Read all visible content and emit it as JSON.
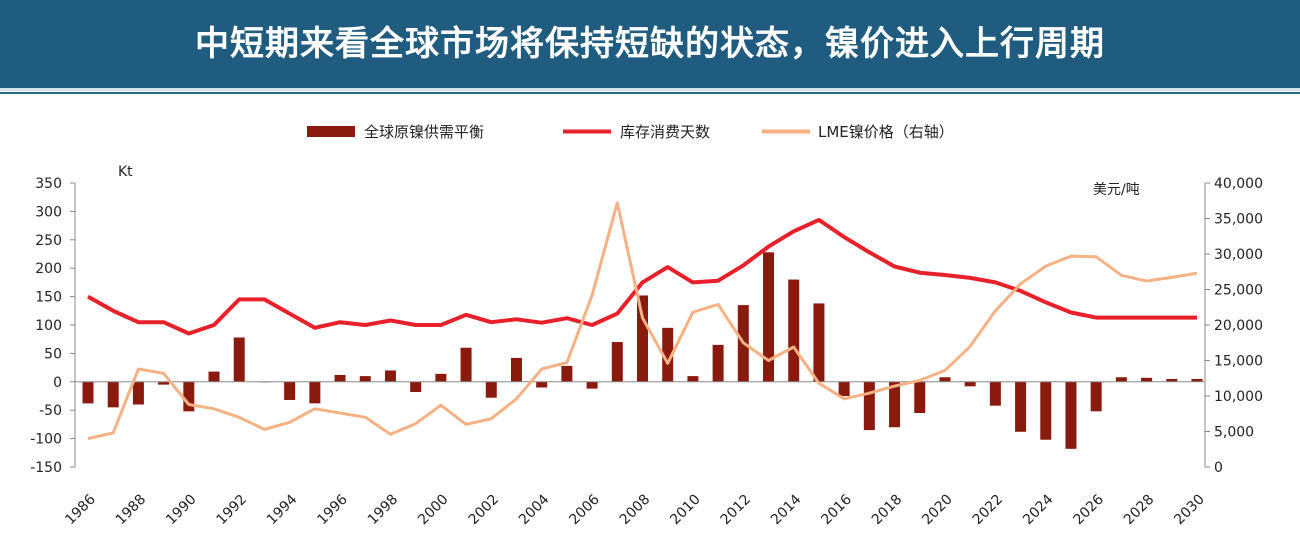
{
  "header": {
    "title": "中短期来看全球市场将保持短缺的状态，镍价进入上行周期"
  },
  "colors": {
    "header_bg": "#1f5c7f",
    "bar": "#8b1a0e",
    "inventory_line": "#e8202a",
    "price_line": "#f4b183"
  },
  "chart_data": {
    "type": "bar+line",
    "title": "",
    "years": [
      1986,
      1987,
      1988,
      1989,
      1990,
      1991,
      1992,
      1993,
      1994,
      1995,
      1996,
      1997,
      1998,
      1999,
      2000,
      2001,
      2002,
      2003,
      2004,
      2005,
      2006,
      2007,
      2008,
      2009,
      2010,
      2011,
      2012,
      2013,
      2014,
      2015,
      2016,
      2017,
      2018,
      2019,
      2020,
      2021,
      2022,
      2023,
      2024,
      2025,
      2026,
      2027,
      2028,
      2029,
      2030
    ],
    "x_tick_labels": [
      "1986",
      "1988",
      "1990",
      "1992",
      "1994",
      "1996",
      "1998",
      "2000",
      "2002",
      "2004",
      "2006",
      "2008",
      "2010",
      "2012",
      "2014",
      "2016",
      "2018",
      "2020",
      "2022",
      "2024",
      "2026",
      "2028",
      "2030"
    ],
    "left_axis": {
      "unit": "Kt",
      "min": -150,
      "max": 350,
      "step": 50,
      "tick_labels": [
        "350",
        "300",
        "250",
        "200",
        "150",
        "100",
        "50",
        "0",
        "-50",
        "-100",
        "-150"
      ]
    },
    "right_axis": {
      "unit": "美元/吨",
      "min": 0,
      "max": 40000,
      "step": 5000,
      "tick_labels": [
        "40,000",
        "35,000",
        "30,000",
        "25,000",
        "20,000",
        "15,000",
        "10,000",
        "5,000",
        "0"
      ]
    },
    "legend_position": "top-center",
    "series": [
      {
        "name": "全球原镍供需平衡",
        "kind": "bar",
        "axis": "left",
        "values": [
          -38,
          -45,
          -40,
          -5,
          -52,
          18,
          78,
          0,
          -32,
          -38,
          12,
          10,
          20,
          -18,
          14,
          60,
          -28,
          42,
          -10,
          28,
          -12,
          70,
          152,
          95,
          10,
          65,
          135,
          228,
          180,
          138,
          -25,
          -85,
          -80,
          -55,
          8,
          -8,
          -42,
          -88,
          -102,
          -118,
          -52,
          8,
          7,
          5,
          5
        ]
      },
      {
        "name": "库存消费天数",
        "kind": "line",
        "axis": "left",
        "values": [
          150,
          125,
          105,
          105,
          85,
          100,
          145,
          145,
          120,
          95,
          105,
          100,
          108,
          100,
          100,
          118,
          105,
          110,
          104,
          112,
          100,
          120,
          175,
          202,
          175,
          178,
          205,
          238,
          265,
          285,
          255,
          228,
          203,
          192,
          188,
          183,
          175,
          160,
          140,
          122,
          113,
          113,
          113,
          113,
          113
        ]
      },
      {
        "name": "LME镍价格（右轴）",
        "kind": "line",
        "axis": "right",
        "values": [
          4000,
          4800,
          13800,
          13200,
          8800,
          8200,
          7000,
          5300,
          6300,
          8200,
          7600,
          7000,
          4600,
          6100,
          8700,
          6000,
          6800,
          9600,
          13800,
          14700,
          24200,
          37200,
          21000,
          14600,
          21800,
          22900,
          17500,
          15000,
          16900,
          11800,
          9600,
          10400,
          11400,
          12200,
          13600,
          17000,
          22000,
          25800,
          28300,
          29700,
          29600,
          27000,
          26200,
          26700,
          27300
        ]
      }
    ]
  }
}
